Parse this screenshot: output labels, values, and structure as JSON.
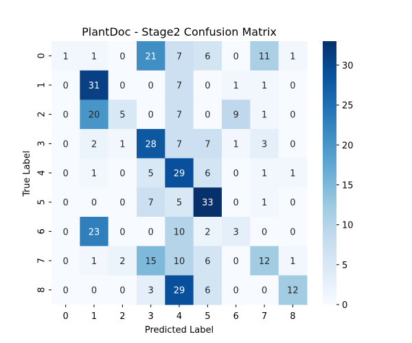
{
  "chart_data": {
    "type": "heatmap",
    "title": "PlantDoc - Stage2 Confusion Matrix",
    "xlabel": "Predicted Label",
    "ylabel": "True Label",
    "x_categories": [
      "0",
      "1",
      "2",
      "3",
      "4",
      "5",
      "6",
      "7",
      "8"
    ],
    "y_categories": [
      "0",
      "1",
      "2",
      "3",
      "4",
      "5",
      "6",
      "7",
      "8"
    ],
    "values": [
      [
        1,
        1,
        0,
        21,
        7,
        6,
        0,
        11,
        1
      ],
      [
        0,
        31,
        0,
        0,
        7,
        0,
        1,
        1,
        0
      ],
      [
        0,
        20,
        5,
        0,
        7,
        0,
        9,
        1,
        0
      ],
      [
        0,
        2,
        1,
        28,
        7,
        7,
        1,
        3,
        0
      ],
      [
        0,
        1,
        0,
        5,
        29,
        6,
        0,
        1,
        1
      ],
      [
        0,
        0,
        0,
        7,
        5,
        33,
        0,
        1,
        0
      ],
      [
        0,
        23,
        0,
        0,
        10,
        2,
        3,
        0,
        0
      ],
      [
        0,
        1,
        2,
        15,
        10,
        6,
        0,
        12,
        1
      ],
      [
        0,
        0,
        0,
        3,
        29,
        6,
        0,
        0,
        12
      ]
    ],
    "colorbar": {
      "min": 0,
      "max": 33,
      "ticks": [
        0,
        5,
        10,
        15,
        20,
        25,
        30
      ],
      "colormap": "Blues"
    }
  }
}
